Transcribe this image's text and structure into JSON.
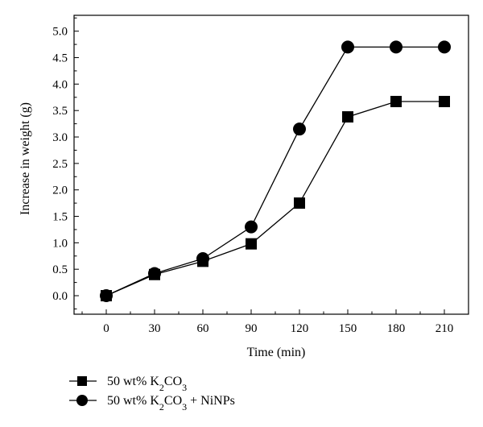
{
  "chart_data": {
    "type": "line",
    "title": "",
    "xlabel": "Time (min)",
    "ylabel": "Increase in weight (g)",
    "x": [
      0,
      30,
      60,
      90,
      120,
      150,
      180,
      210
    ],
    "xlim": [
      -20,
      225
    ],
    "ylim": [
      -0.35,
      5.3
    ],
    "xticks": [
      "0",
      "30",
      "60",
      "90",
      "120",
      "150",
      "180",
      "210"
    ],
    "yticks": [
      "0.0",
      "0.5",
      "1.0",
      "1.5",
      "2.0",
      "2.5",
      "3.0",
      "3.5",
      "4.0",
      "4.5",
      "5.0"
    ],
    "grid": false,
    "legend_position": "bottom-left",
    "series": [
      {
        "name_prefix": "50 wt% K",
        "name_sub": "2",
        "name_mid": "CO",
        "name_sub2": "3",
        "name_suffix": "",
        "marker": "square",
        "values": [
          0.0,
          0.4,
          0.65,
          0.98,
          1.75,
          3.38,
          3.67,
          3.67
        ]
      },
      {
        "name_prefix": "50 wt% K",
        "name_sub": "2",
        "name_mid": "CO",
        "name_sub2": "3",
        "name_suffix": " + NiNPs",
        "marker": "circle",
        "values": [
          0.0,
          0.42,
          0.7,
          1.3,
          3.15,
          4.7,
          4.7,
          4.7
        ]
      }
    ]
  }
}
